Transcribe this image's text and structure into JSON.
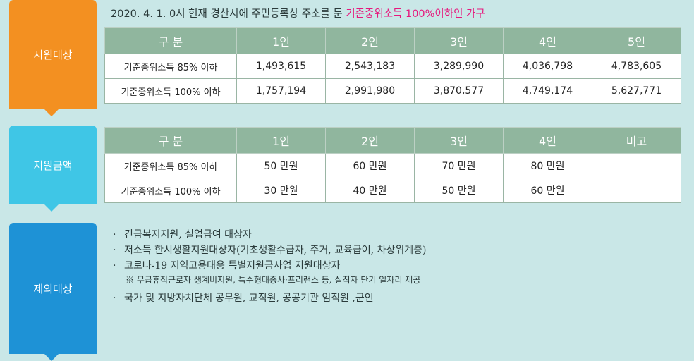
{
  "tabs": {
    "target": "지원대상",
    "amount": "지원금액",
    "exclusion": "제외대상"
  },
  "headline": {
    "prefix": "2020. 4. 1. 0시 현재 경산시에 주민등록상 주소를 둔 ",
    "highlight": "기준중위소득 100%이하인 가구"
  },
  "income_table": {
    "headers": [
      "구 분",
      "1인",
      "2인",
      "3인",
      "4인",
      "5인"
    ],
    "rows": [
      [
        "기준중위소득 85% 이하",
        "1,493,615",
        "2,543,183",
        "3,289,990",
        "4,036,798",
        "4,783,605"
      ],
      [
        "기준중위소득 100% 이하",
        "1,757,194",
        "2,991,980",
        "3,870,577",
        "4,749,174",
        "5,627,771"
      ]
    ]
  },
  "amount_table": {
    "headers": [
      "구 분",
      "1인",
      "2인",
      "3인",
      "4인",
      "비고"
    ],
    "rows": [
      [
        "기준중위소득 85% 이하",
        "50 만원",
        "60 만원",
        "70 만원",
        "80 만원",
        ""
      ],
      [
        "기준중위소득 100% 이하",
        "30 만원",
        "40 만원",
        "50 만원",
        "60 만원",
        ""
      ]
    ]
  },
  "exclusions": {
    "bullet": "·",
    "items": [
      "긴급복지지원, 실업급여 대상자",
      "저소득 한시생활지원대상자(기초생활수급자, 주거, 교육급여, 차상위계층)",
      "코로나-19 지역고용대응 특별지원금사업 지원대상자",
      "국가 및 지방자치단체 공무원, 교직원, 공공기관 임직원 ,군인"
    ],
    "note": "※ 무급휴직근로자 생계비지원, 특수형태종사·프리랜스 등, 실직자 단기 일자리 제공"
  },
  "colors": {
    "background": "#c9e7e7",
    "tab_orange": "#f39021",
    "tab_cyan": "#3fc6e6",
    "tab_blue": "#1e92d6",
    "table_header": "#90b69e",
    "highlight_pink": "#e6187d"
  }
}
